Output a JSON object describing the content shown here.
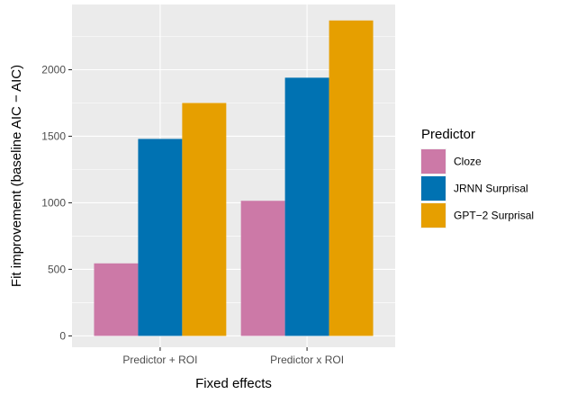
{
  "chart_data": {
    "type": "bar",
    "categories": [
      "Predictor + ROI",
      "Predictor x ROI"
    ],
    "series": [
      {
        "name": "Cloze",
        "color": "#CC79A7",
        "values": [
          545,
          1015
        ]
      },
      {
        "name": "JRNN Surprisal",
        "color": "#0072B2",
        "values": [
          1480,
          1940
        ]
      },
      {
        "name": "GPT−2 Surprisal",
        "color": "#E69F00",
        "values": [
          1750,
          2370
        ]
      }
    ],
    "xlabel": "Fixed effects",
    "ylabel": "Fit improvement (baseline AIC − AIC)",
    "ylim": [
      -85,
      2490
    ],
    "yticks": [
      0,
      500,
      1000,
      1500,
      2000
    ],
    "grid": true,
    "legend": {
      "title": "Predictor",
      "position": "right"
    },
    "panel_background": "#EBEBEB",
    "grid_color": "#FFFFFF"
  }
}
